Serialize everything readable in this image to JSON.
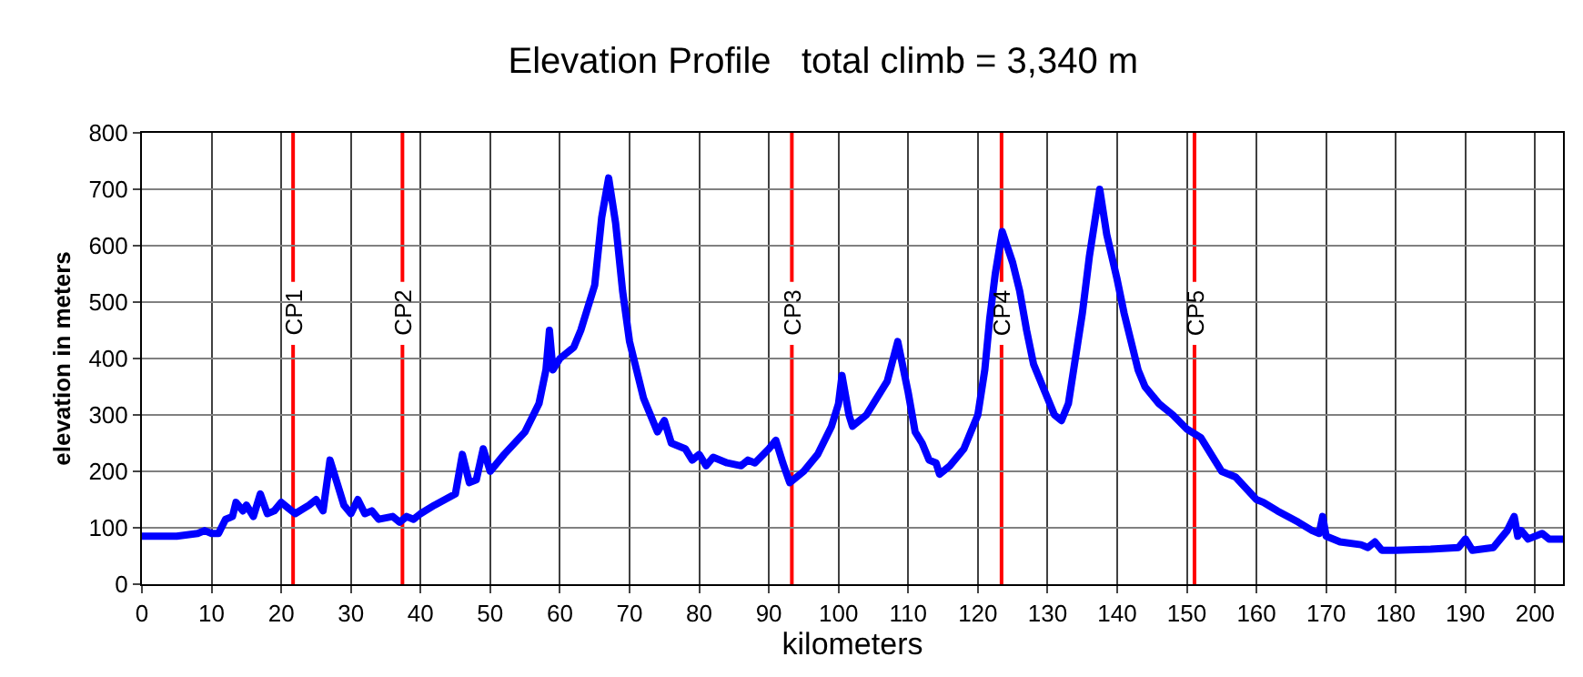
{
  "chart_data": {
    "type": "line",
    "title": "Elevation Profile   total climb = 3,340 m",
    "xlabel": "kilometers",
    "ylabel": "elevation in meters",
    "x": [
      0,
      5,
      8,
      9,
      10,
      11,
      12,
      13,
      13.5,
      14.5,
      15,
      16,
      17,
      18,
      19,
      20,
      21,
      22,
      24,
      25,
      26,
      27,
      28,
      29,
      30,
      31,
      32,
      33,
      34,
      36,
      37,
      38,
      39,
      40,
      42,
      45,
      46,
      47,
      48,
      49,
      50,
      52,
      55,
      57,
      58,
      58.5,
      59,
      60,
      62,
      63,
      65,
      66,
      67,
      68,
      69,
      70,
      71,
      72,
      73,
      74,
      75,
      76,
      78,
      79,
      80,
      81,
      82,
      84,
      86,
      87,
      88,
      90,
      91,
      92,
      93,
      95,
      97,
      99,
      100,
      100.5,
      101.5,
      102,
      104,
      105,
      107,
      108.5,
      110,
      111,
      112,
      113,
      114,
      114.5,
      116,
      118,
      119,
      120,
      121,
      121.7,
      122.5,
      123.5,
      125,
      126,
      127,
      128,
      130,
      131,
      132,
      133,
      135,
      136,
      137.5,
      138.5,
      140,
      141,
      142,
      143,
      144,
      146,
      148,
      150,
      152,
      154,
      155,
      157,
      160,
      161,
      163,
      166,
      168,
      169,
      169.5,
      170,
      172,
      175,
      176,
      177,
      178,
      180,
      185,
      189,
      190,
      191,
      194,
      195,
      196,
      197,
      197.5,
      198,
      199,
      201,
      202,
      204
    ],
    "series": [
      {
        "color": "#0000ff",
        "values": [
          85,
          85,
          90,
          95,
          90,
          90,
          115,
          120,
          145,
          130,
          140,
          120,
          160,
          125,
          130,
          145,
          135,
          125,
          140,
          150,
          130,
          220,
          180,
          140,
          125,
          150,
          125,
          130,
          115,
          120,
          110,
          120,
          115,
          125,
          140,
          160,
          230,
          180,
          185,
          240,
          200,
          230,
          270,
          320,
          380,
          450,
          380,
          400,
          420,
          450,
          530,
          650,
          720,
          640,
          520,
          430,
          380,
          330,
          300,
          270,
          290,
          250,
          240,
          220,
          230,
          210,
          225,
          215,
          210,
          220,
          215,
          240,
          255,
          215,
          180,
          200,
          230,
          280,
          320,
          370,
          300,
          280,
          300,
          320,
          360,
          430,
          340,
          270,
          250,
          220,
          215,
          195,
          210,
          240,
          270,
          300,
          380,
          470,
          550,
          625,
          570,
          520,
          450,
          390,
          330,
          300,
          290,
          320,
          480,
          580,
          700,
          620,
          540,
          480,
          430,
          380,
          350,
          320,
          300,
          275,
          260,
          220,
          200,
          190,
          150,
          145,
          130,
          110,
          95,
          90,
          120,
          85,
          75,
          70,
          65,
          75,
          60,
          60,
          62,
          65,
          80,
          60,
          65,
          80,
          95,
          120,
          85,
          95,
          80,
          90,
          80,
          80
        ]
      }
    ],
    "xlim": [
      0,
      204
    ],
    "xticks": [
      0,
      10,
      20,
      30,
      40,
      50,
      60,
      70,
      80,
      90,
      100,
      110,
      120,
      130,
      140,
      150,
      160,
      170,
      180,
      190,
      200
    ],
    "ylim": [
      0,
      800
    ],
    "yticks": [
      0,
      100,
      200,
      300,
      400,
      500,
      600,
      700,
      800
    ],
    "ref_lines": [
      {
        "axis": "x",
        "value": 21.7,
        "label": "CP1",
        "color": "#ff0000"
      },
      {
        "axis": "x",
        "value": 37.4,
        "label": "CP2",
        "color": "#ff0000"
      },
      {
        "axis": "x",
        "value": 93.3,
        "label": "CP3",
        "color": "#ff0000"
      },
      {
        "axis": "x",
        "value": 123.4,
        "label": "CP4",
        "color": "#ff0000"
      },
      {
        "axis": "x",
        "value": 151.1,
        "label": "CP5",
        "color": "#ff0000"
      }
    ],
    "grid": true,
    "marker": "none",
    "line_style": "solid"
  }
}
